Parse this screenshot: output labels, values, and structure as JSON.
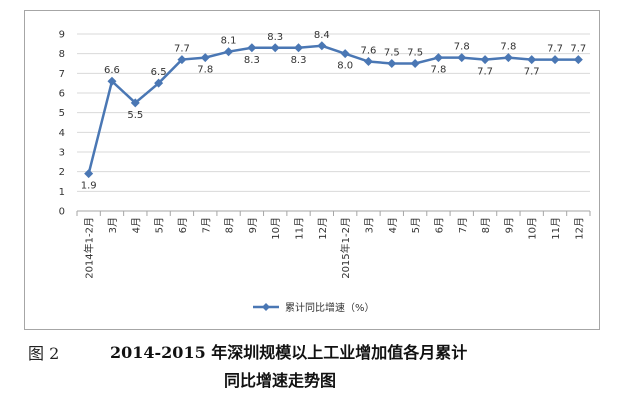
{
  "chart_data": {
    "type": "line",
    "categories": [
      "2014年1-2月",
      "3月",
      "4月",
      "5月",
      "6月",
      "7月",
      "8月",
      "9月",
      "10月",
      "11月",
      "12月",
      "2015年1-2月",
      "3月",
      "4月",
      "5月",
      "6月",
      "7月",
      "8月",
      "9月",
      "10月",
      "11月",
      "12月"
    ],
    "series": [
      {
        "name": "累计同比增速（%）",
        "values": [
          1.9,
          6.6,
          5.5,
          6.5,
          7.7,
          7.8,
          8.1,
          8.3,
          8.3,
          8.3,
          8.4,
          8.0,
          7.6,
          7.5,
          7.5,
          7.8,
          7.8,
          7.7,
          7.8,
          7.7,
          7.7,
          7.7
        ],
        "labels": [
          "1.9",
          "6.6",
          "5.5",
          "6.5",
          "7.7",
          "7.8",
          "8.1",
          "8.3",
          "8.3",
          "8.3",
          "8.4",
          "8.0",
          "7.6",
          "7.5",
          "7.5",
          "7.8",
          "7.8",
          "7.7",
          "7.8",
          "7.7",
          "7.7",
          "7.7"
        ]
      }
    ],
    "y_ticks": [
      "0",
      "1",
      "2",
      "3",
      "4",
      "5",
      "6",
      "7",
      "8",
      "9"
    ],
    "ylim": [
      0,
      9
    ],
    "grid": true,
    "legend_position": "bottom",
    "color": "#4a77b4"
  },
  "caption": {
    "prefix": "图 2",
    "line1": "2014-2015 年深圳规模以上工业增加值各月累计",
    "line2": "同比增速走势图"
  }
}
